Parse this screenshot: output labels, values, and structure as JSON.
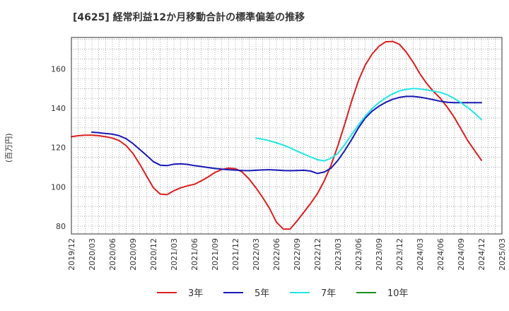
{
  "chart_data": {
    "type": "line",
    "title": "[4625]  経常利益12か月移動合計の標準偏差の推移",
    "ylabel": "(百万円)",
    "xlabel": "",
    "ylim": [
      76,
      176
    ],
    "yticks": [
      80,
      100,
      120,
      140,
      160
    ],
    "xlim": [
      "2019-12",
      "2025-03"
    ],
    "xticks": [
      "2019/12",
      "2020/03",
      "2020/06",
      "2020/09",
      "2020/12",
      "2021/03",
      "2021/06",
      "2021/09",
      "2021/12",
      "2022/03",
      "2022/06",
      "2022/09",
      "2022/12",
      "2023/03",
      "2023/06",
      "2023/09",
      "2023/12",
      "2024/03",
      "2024/06",
      "2024/09",
      "2024/12",
      "2025/03"
    ],
    "grid": true,
    "legend_position": "bottom",
    "series": [
      {
        "name": "3年",
        "color": "#dd1e1e",
        "points": [
          [
            "2019-12",
            125.5
          ],
          [
            "2020-01",
            126.0
          ],
          [
            "2020-02",
            126.3
          ],
          [
            "2020-03",
            126.3
          ],
          [
            "2020-04",
            126.0
          ],
          [
            "2020-05",
            125.5
          ],
          [
            "2020-06",
            124.8
          ],
          [
            "2020-07",
            123.5
          ],
          [
            "2020-08",
            121.0
          ],
          [
            "2020-09",
            117.0
          ],
          [
            "2020-10",
            111.5
          ],
          [
            "2020-11",
            105.5
          ],
          [
            "2020-12",
            99.5
          ],
          [
            "2021-01",
            96.3
          ],
          [
            "2021-02",
            96.0
          ],
          [
            "2021-03",
            98.0
          ],
          [
            "2021-04",
            99.5
          ],
          [
            "2021-05",
            100.5
          ],
          [
            "2021-06",
            101.3
          ],
          [
            "2021-07",
            103.0
          ],
          [
            "2021-08",
            105.0
          ],
          [
            "2021-09",
            107.3
          ],
          [
            "2021-10",
            108.8
          ],
          [
            "2021-11",
            109.5
          ],
          [
            "2021-12",
            109.2
          ],
          [
            "2022-01",
            107.5
          ],
          [
            "2022-02",
            104.0
          ],
          [
            "2022-03",
            99.5
          ],
          [
            "2022-04",
            94.5
          ],
          [
            "2022-05",
            89.0
          ],
          [
            "2022-06",
            82.0
          ],
          [
            "2022-07",
            78.5
          ],
          [
            "2022-08",
            78.5
          ],
          [
            "2022-09",
            82.5
          ],
          [
            "2022-10",
            87.0
          ],
          [
            "2022-11",
            91.5
          ],
          [
            "2022-12",
            96.5
          ],
          [
            "2023-01",
            103.0
          ],
          [
            "2023-02",
            111.0
          ],
          [
            "2023-03",
            121.0
          ],
          [
            "2023-04",
            132.0
          ],
          [
            "2023-05",
            143.5
          ],
          [
            "2023-06",
            154.0
          ],
          [
            "2023-07",
            162.0
          ],
          [
            "2023-08",
            167.5
          ],
          [
            "2023-09",
            171.5
          ],
          [
            "2023-10",
            173.8
          ],
          [
            "2023-11",
            174.0
          ],
          [
            "2023-12",
            172.5
          ],
          [
            "2024-01",
            168.5
          ],
          [
            "2024-02",
            163.5
          ],
          [
            "2024-03",
            157.5
          ],
          [
            "2024-04",
            152.5
          ],
          [
            "2024-05",
            148.5
          ],
          [
            "2024-06",
            145.0
          ],
          [
            "2024-07",
            140.5
          ],
          [
            "2024-08",
            135.5
          ],
          [
            "2024-09",
            129.5
          ],
          [
            "2024-10",
            123.5
          ],
          [
            "2024-11",
            118.5
          ],
          [
            "2024-12",
            113.5
          ]
        ]
      },
      {
        "name": "5年",
        "color": "#1818b4",
        "points": [
          [
            "2020-03",
            127.8
          ],
          [
            "2020-04",
            127.5
          ],
          [
            "2020-05",
            127.1
          ],
          [
            "2020-06",
            126.8
          ],
          [
            "2020-07",
            126.0
          ],
          [
            "2020-08",
            124.5
          ],
          [
            "2020-09",
            122.0
          ],
          [
            "2020-10",
            119.0
          ],
          [
            "2020-11",
            116.0
          ],
          [
            "2020-12",
            112.8
          ],
          [
            "2021-01",
            111.0
          ],
          [
            "2021-02",
            110.8
          ],
          [
            "2021-03",
            111.5
          ],
          [
            "2021-04",
            111.7
          ],
          [
            "2021-05",
            111.4
          ],
          [
            "2021-06",
            110.8
          ],
          [
            "2021-07",
            110.3
          ],
          [
            "2021-08",
            109.8
          ],
          [
            "2021-09",
            109.3
          ],
          [
            "2021-10",
            109.0
          ],
          [
            "2021-11",
            108.7
          ],
          [
            "2021-12",
            108.5
          ],
          [
            "2022-01",
            108.3
          ],
          [
            "2022-02",
            108.2
          ],
          [
            "2022-03",
            108.4
          ],
          [
            "2022-04",
            108.6
          ],
          [
            "2022-05",
            108.7
          ],
          [
            "2022-06",
            108.5
          ],
          [
            "2022-07",
            108.3
          ],
          [
            "2022-08",
            108.2
          ],
          [
            "2022-09",
            108.3
          ],
          [
            "2022-10",
            108.4
          ],
          [
            "2022-11",
            108.0
          ],
          [
            "2022-12",
            106.8
          ],
          [
            "2023-01",
            107.5
          ],
          [
            "2023-02",
            109.5
          ],
          [
            "2023-03",
            113.5
          ],
          [
            "2023-04",
            118.5
          ],
          [
            "2023-05",
            124.0
          ],
          [
            "2023-06",
            130.0
          ],
          [
            "2023-07",
            135.0
          ],
          [
            "2023-08",
            138.5
          ],
          [
            "2023-09",
            141.0
          ],
          [
            "2023-10",
            143.0
          ],
          [
            "2023-11",
            144.5
          ],
          [
            "2023-12",
            145.5
          ],
          [
            "2024-01",
            146.0
          ],
          [
            "2024-02",
            146.0
          ],
          [
            "2024-03",
            145.6
          ],
          [
            "2024-04",
            145.0
          ],
          [
            "2024-05",
            144.3
          ],
          [
            "2024-06",
            143.5
          ],
          [
            "2024-07",
            143.0
          ],
          [
            "2024-08",
            142.8
          ],
          [
            "2024-09",
            142.8
          ],
          [
            "2024-10",
            142.8
          ],
          [
            "2024-11",
            142.8
          ],
          [
            "2024-12",
            142.8
          ]
        ]
      },
      {
        "name": "7年",
        "color": "#22e6e6",
        "points": [
          [
            "2022-03",
            124.8
          ],
          [
            "2022-04",
            124.2
          ],
          [
            "2022-05",
            123.4
          ],
          [
            "2022-06",
            122.4
          ],
          [
            "2022-07",
            121.2
          ],
          [
            "2022-08",
            119.8
          ],
          [
            "2022-09",
            118.2
          ],
          [
            "2022-10",
            116.7
          ],
          [
            "2022-11",
            115.2
          ],
          [
            "2022-12",
            113.8
          ],
          [
            "2023-01",
            113.2
          ],
          [
            "2023-02",
            114.5
          ],
          [
            "2023-03",
            117.0
          ],
          [
            "2023-04",
            121.5
          ],
          [
            "2023-05",
            126.5
          ],
          [
            "2023-06",
            131.5
          ],
          [
            "2023-07",
            136.0
          ],
          [
            "2023-08",
            139.8
          ],
          [
            "2023-09",
            142.8
          ],
          [
            "2023-10",
            145.3
          ],
          [
            "2023-11",
            147.3
          ],
          [
            "2023-12",
            148.8
          ],
          [
            "2024-01",
            149.6
          ],
          [
            "2024-02",
            150.0
          ],
          [
            "2024-03",
            149.8
          ],
          [
            "2024-04",
            149.3
          ],
          [
            "2024-05",
            148.7
          ],
          [
            "2024-06",
            148.0
          ],
          [
            "2024-07",
            146.8
          ],
          [
            "2024-08",
            145.0
          ],
          [
            "2024-09",
            142.8
          ],
          [
            "2024-10",
            140.3
          ],
          [
            "2024-11",
            137.5
          ],
          [
            "2024-12",
            134.2
          ]
        ]
      },
      {
        "name": "10年",
        "color": "#1e8c1e",
        "points": []
      }
    ]
  }
}
